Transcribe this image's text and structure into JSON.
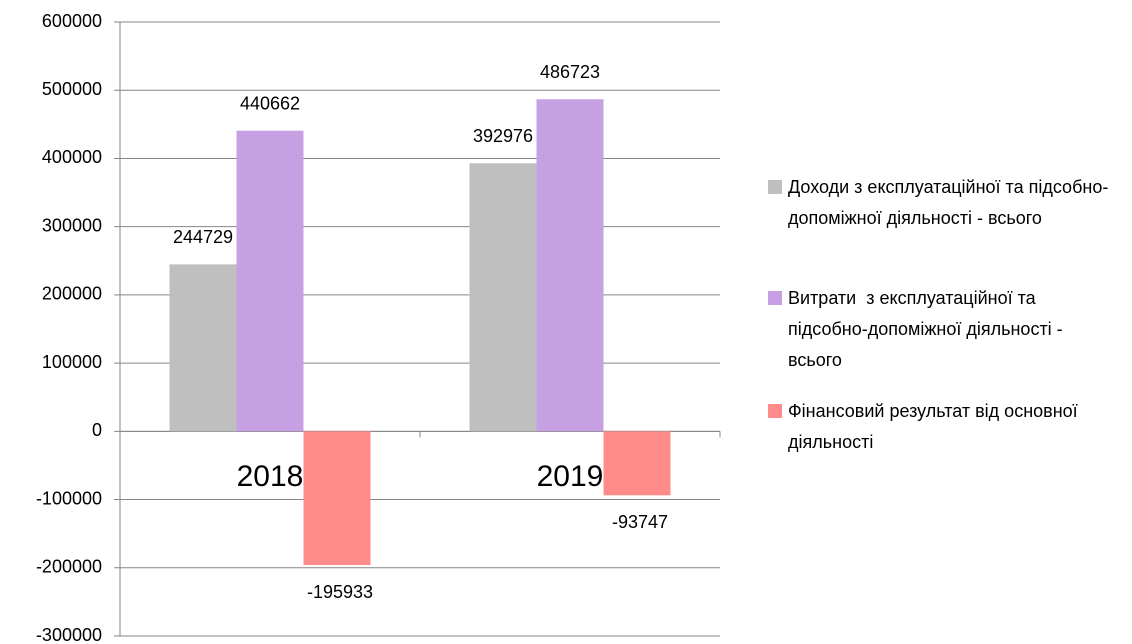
{
  "chart_data": {
    "type": "bar",
    "categories": [
      "2018",
      "2019"
    ],
    "series": [
      {
        "name": "Доходи з експлуатаційної та підсобно-допоміжної діяльності - всього",
        "color": "#bfbfbf",
        "values": [
          244729,
          392976
        ]
      },
      {
        "name": "Витрати  з експлуатаційної та підсобно-допоміжної діяльності - всього",
        "color": "#c7a0e3",
        "values": [
          440662,
          486723
        ]
      },
      {
        "name": "Фінансовий результат від основної діяльності",
        "color": "#ff8b8b",
        "values": [
          -195933,
          -93747
        ]
      }
    ],
    "ylim": [
      -300000,
      600000
    ],
    "yticks": [
      -300000,
      -200000,
      -100000,
      0,
      100000,
      200000,
      300000,
      400000,
      500000,
      600000
    ],
    "grid": true,
    "legend": "right"
  }
}
